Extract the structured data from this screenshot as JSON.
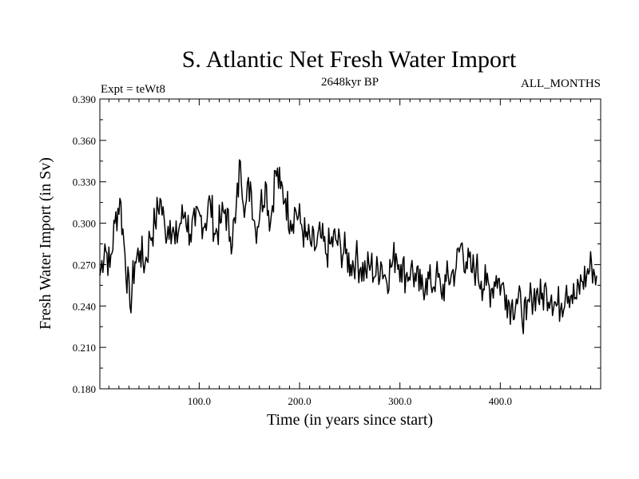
{
  "chart_data": {
    "type": "line",
    "title": "S. Atlantic Net Fresh Water Import",
    "subtitle_left": "Expt = teWt8",
    "subtitle_center": "2648kyr BP",
    "subtitle_right": "ALL_MONTHS",
    "xlabel": "Time (in years since start)",
    "ylabel": "Fresh Water Import (in Sv)",
    "xlim": [
      1,
      500
    ],
    "ylim": [
      0.18,
      0.39
    ],
    "xticks": [
      100,
      200,
      300,
      400
    ],
    "xtick_labels": [
      "100.0",
      "200.0",
      "300.0",
      "400.0"
    ],
    "yticks": [
      0.18,
      0.21,
      0.24,
      0.27,
      0.3,
      0.33,
      0.36,
      0.39
    ],
    "ytick_labels": [
      "0.180",
      "0.210",
      "0.240",
      "0.270",
      "0.300",
      "0.330",
      "0.360",
      "0.390"
    ],
    "series": [
      {
        "name": "Net Fresh Water Import",
        "x_start": 1,
        "x_step": 5,
        "values": [
          0.262,
          0.285,
          0.268,
          0.3,
          0.318,
          0.278,
          0.24,
          0.272,
          0.28,
          0.27,
          0.29,
          0.3,
          0.318,
          0.295,
          0.302,
          0.285,
          0.3,
          0.308,
          0.292,
          0.298,
          0.305,
          0.3,
          0.316,
          0.292,
          0.3,
          0.31,
          0.29,
          0.3,
          0.345,
          0.312,
          0.33,
          0.295,
          0.312,
          0.33,
          0.3,
          0.338,
          0.325,
          0.318,
          0.302,
          0.31,
          0.3,
          0.29,
          0.285,
          0.282,
          0.29,
          0.278,
          0.285,
          0.288,
          0.282,
          0.278,
          0.27,
          0.275,
          0.268,
          0.265,
          0.27,
          0.262,
          0.272,
          0.26,
          0.268,
          0.278,
          0.27,
          0.262,
          0.268,
          0.258,
          0.252,
          0.26,
          0.255,
          0.262,
          0.25,
          0.258,
          0.262,
          0.268,
          0.285,
          0.272,
          0.265,
          0.268,
          0.258,
          0.255,
          0.252,
          0.262,
          0.255,
          0.248,
          0.24,
          0.245,
          0.238,
          0.23,
          0.248,
          0.25,
          0.245,
          0.252,
          0.248,
          0.24,
          0.242,
          0.255,
          0.248,
          0.245,
          0.258,
          0.262,
          0.27,
          0.262
        ]
      }
    ]
  }
}
